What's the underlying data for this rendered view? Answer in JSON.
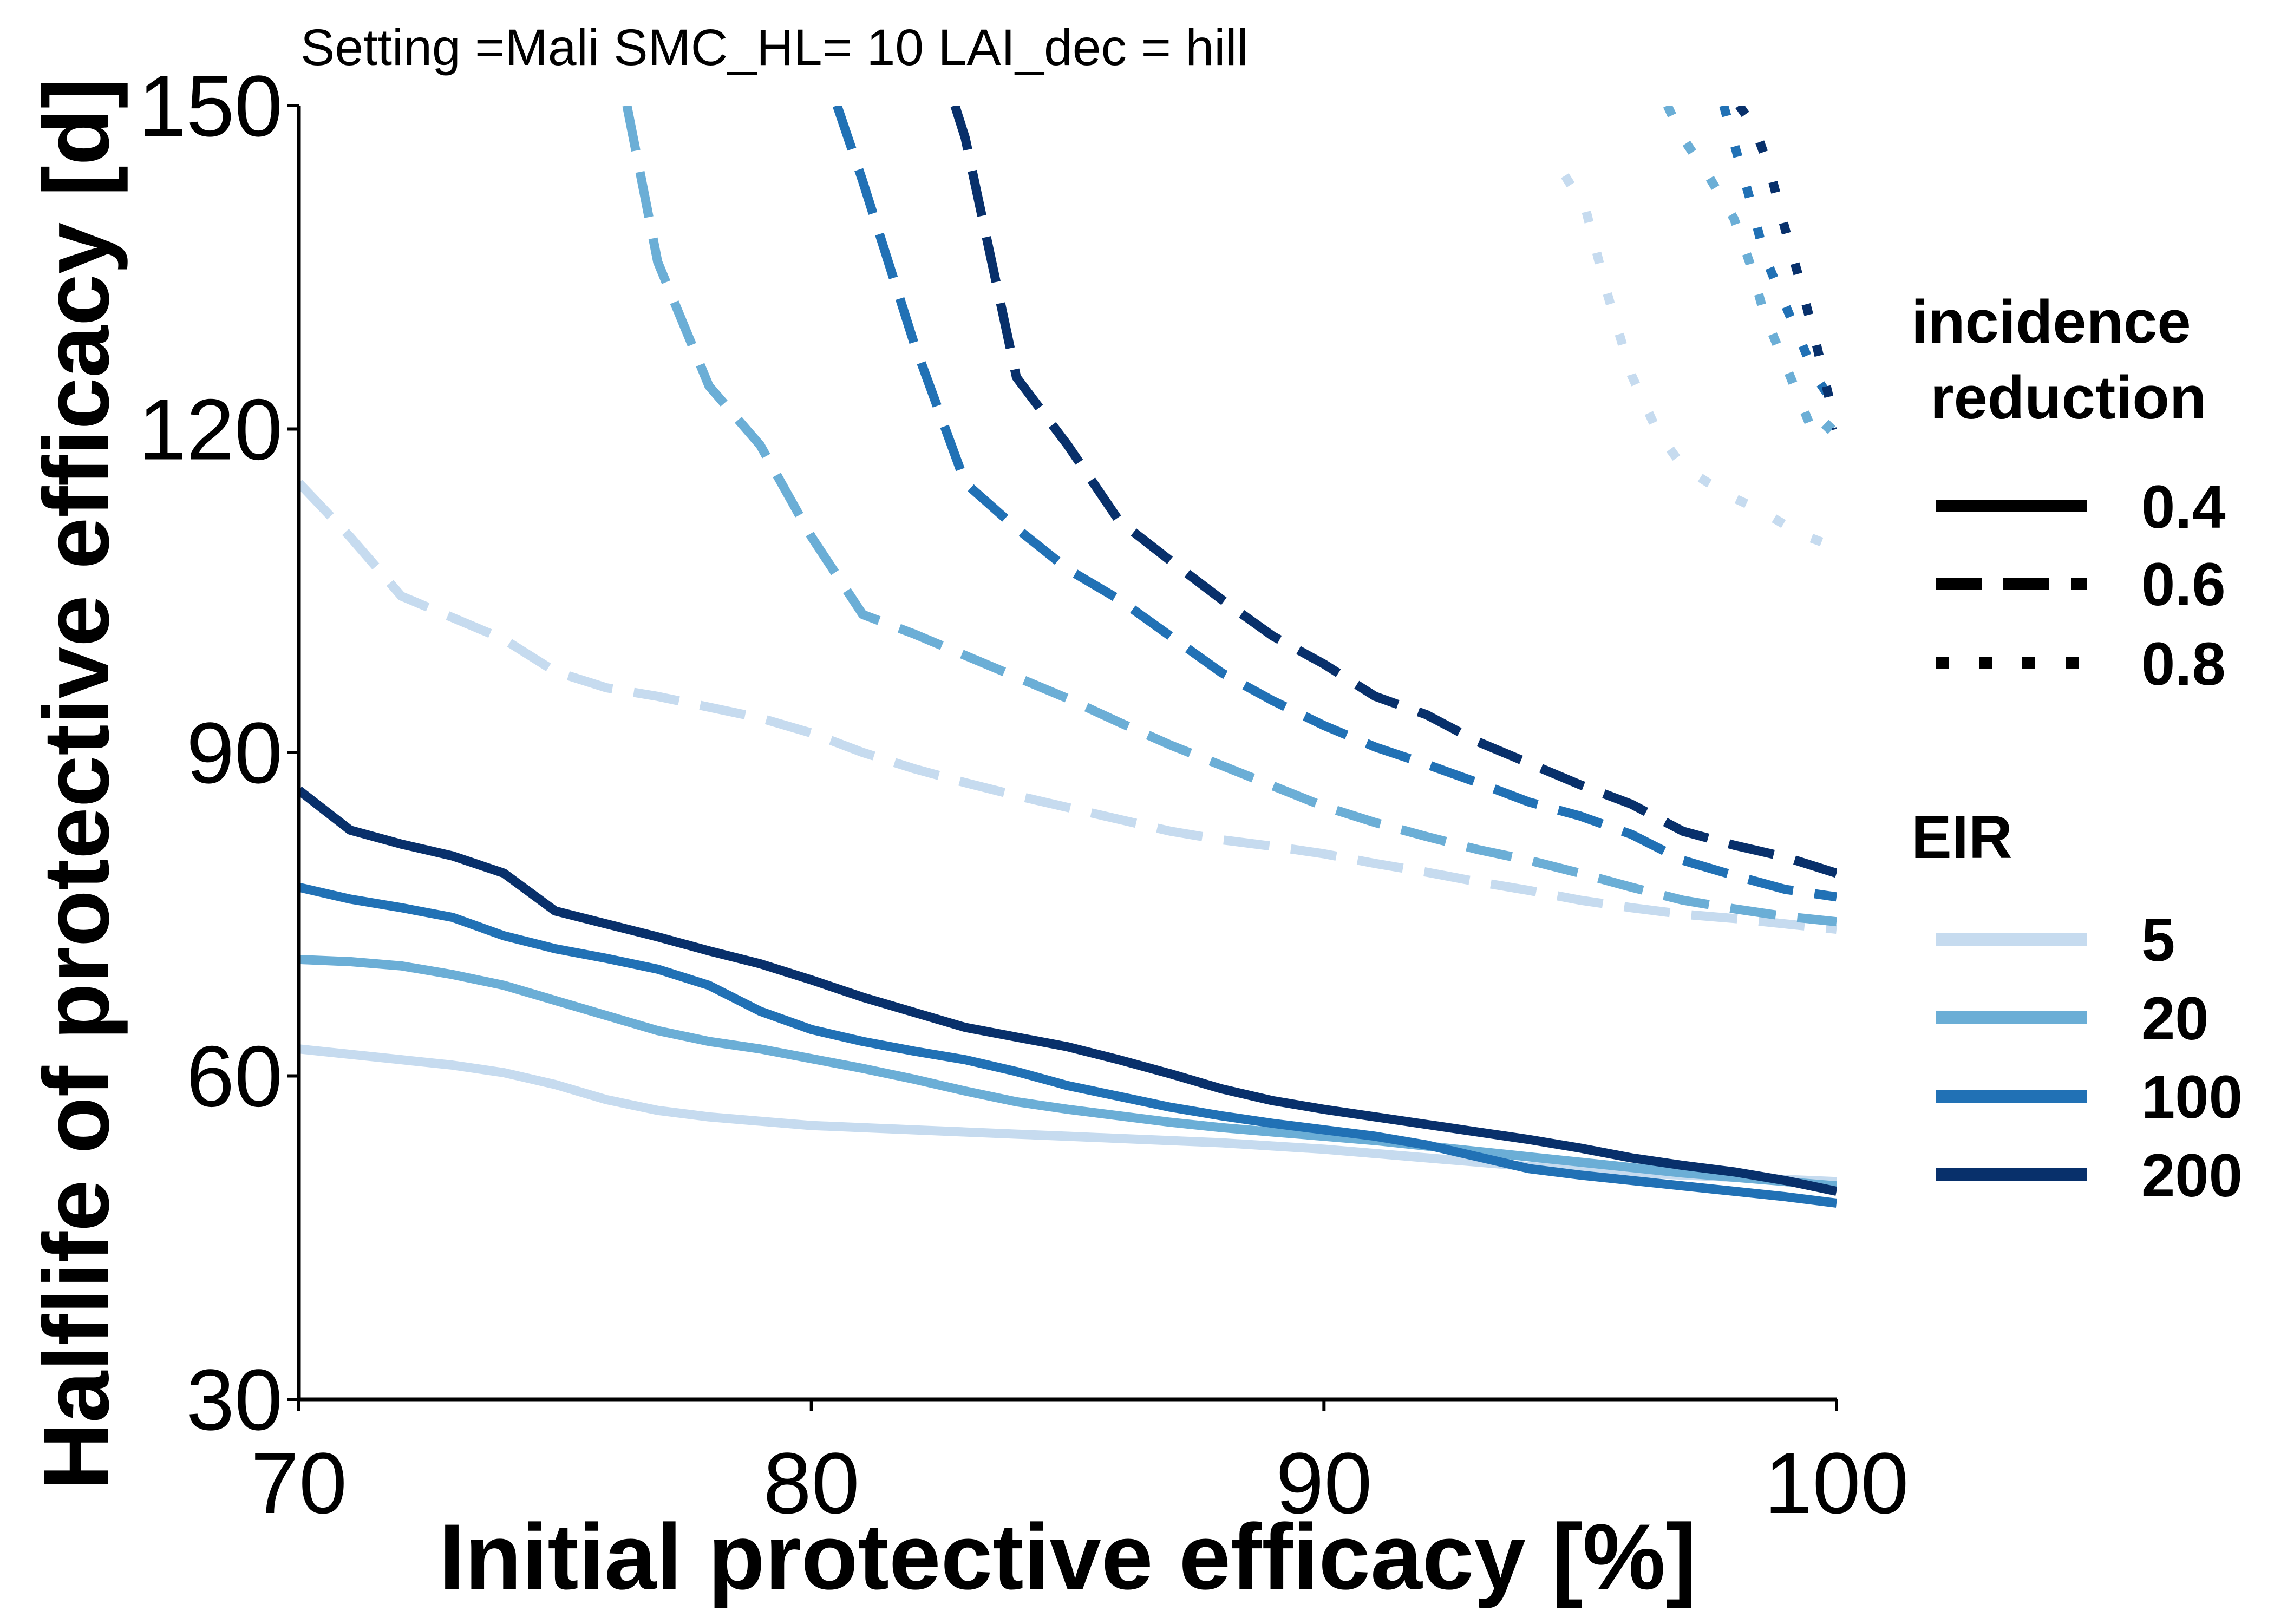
{
  "chart_data": {
    "type": "line",
    "title": "Setting =Mali SMC_HL= 10 LAI_dec = hill",
    "xlabel": "Initial protective efficacy [%]",
    "ylabel": "Halflife of protective efficacy [d]",
    "xlim": [
      70,
      100
    ],
    "ylim": [
      30,
      150
    ],
    "xticks": [
      "70",
      "80",
      "90",
      "100"
    ],
    "yticks": [
      "30",
      "60",
      "90",
      "120",
      "150"
    ],
    "grid": false,
    "legend_placement": "right",
    "legend": {
      "linetype_title": [
        "incidence",
        "reduction"
      ],
      "linetype_entries": [
        {
          "label": "0.4",
          "style": "solid"
        },
        {
          "label": "0.6",
          "style": "dashed"
        },
        {
          "label": "0.8",
          "style": "dotted"
        }
      ],
      "color_title": "EIR",
      "color_entries": [
        {
          "label": "5",
          "color": "#c6dbef"
        },
        {
          "label": "20",
          "color": "#6baed6"
        },
        {
          "label": "100",
          "color": "#2171b5"
        },
        {
          "label": "200",
          "color": "#08306b"
        }
      ]
    },
    "series": [
      {
        "eir": "5",
        "reduction": "0.4",
        "color": "#c6dbef",
        "style": "solid",
        "x": [
          70,
          71,
          72,
          73,
          74,
          75,
          76,
          77,
          78,
          79,
          80,
          81,
          82,
          83,
          84,
          85,
          86,
          87,
          88,
          89,
          90,
          91,
          92,
          93,
          94,
          95,
          96,
          97,
          98,
          99,
          100
        ],
        "y": [
          62.5,
          62,
          61.5,
          61,
          60.3,
          59.2,
          57.8,
          56.8,
          56.2,
          55.8,
          55.4,
          55.2,
          55,
          54.8,
          54.6,
          54.4,
          54.2,
          54,
          53.8,
          53.5,
          53.2,
          52.8,
          52.4,
          52,
          51.6,
          51.3,
          51,
          50.8,
          50.6,
          50.4,
          50.2
        ]
      },
      {
        "eir": "20",
        "reduction": "0.4",
        "color": "#6baed6",
        "style": "solid",
        "x": [
          70,
          71,
          72,
          73,
          74,
          75,
          76,
          77,
          78,
          79,
          80,
          81,
          82,
          83,
          84,
          85,
          86,
          87,
          88,
          89,
          90,
          91,
          92,
          93,
          94,
          95,
          96,
          97,
          98,
          99,
          100
        ],
        "y": [
          70.8,
          70.6,
          70.2,
          69.4,
          68.4,
          67,
          65.6,
          64.2,
          63.2,
          62.5,
          61.6,
          60.7,
          59.7,
          58.6,
          57.6,
          56.9,
          56.3,
          55.7,
          55.2,
          54.8,
          54.4,
          54,
          53.5,
          53,
          52.5,
          52,
          51.5,
          51,
          50.6,
          50.2,
          49.8
        ]
      },
      {
        "eir": "100",
        "reduction": "0.4",
        "color": "#2171b5",
        "style": "solid",
        "x": [
          70,
          71,
          72,
          73,
          74,
          75,
          76,
          77,
          78,
          79,
          80,
          81,
          82,
          83,
          84,
          85,
          86,
          87,
          88,
          89,
          90,
          91,
          92,
          93,
          94,
          95,
          96,
          97,
          98,
          99,
          100
        ],
        "y": [
          77.5,
          76.4,
          75.6,
          74.7,
          73,
          71.8,
          70.9,
          69.9,
          68.4,
          66,
          64.3,
          63.2,
          62.3,
          61.5,
          60.4,
          59.1,
          58.1,
          57.1,
          56.3,
          55.6,
          55,
          54.4,
          53.6,
          52.5,
          51.4,
          50.8,
          50.3,
          49.8,
          49.3,
          48.8,
          48.2
        ]
      },
      {
        "eir": "200",
        "reduction": "0.4",
        "color": "#08306b",
        "style": "solid",
        "x": [
          70,
          71,
          72,
          73,
          74,
          75,
          76,
          77,
          78,
          79,
          80,
          81,
          82,
          83,
          84,
          85,
          86,
          87,
          88,
          89,
          90,
          91,
          92,
          93,
          94,
          95,
          96,
          97,
          98,
          99,
          100
        ],
        "y": [
          86.5,
          82.8,
          81.5,
          80.4,
          78.8,
          75.3,
          74.1,
          72.9,
          71.6,
          70.4,
          68.9,
          67.3,
          65.9,
          64.5,
          63.6,
          62.7,
          61.5,
          60.2,
          58.8,
          57.7,
          56.9,
          56.2,
          55.5,
          54.8,
          54.1,
          53.3,
          52.4,
          51.7,
          51.1,
          50.3,
          49.3
        ]
      },
      {
        "eir": "5",
        "reduction": "0.6",
        "color": "#c6dbef",
        "style": "dashed",
        "x": [
          70,
          71,
          72,
          73,
          74,
          75,
          76,
          77,
          78,
          79,
          80,
          81,
          82,
          83,
          84,
          85,
          86,
          87,
          88,
          89,
          90,
          91,
          92,
          93,
          94,
          95,
          96,
          97,
          98,
          99,
          100
        ],
        "y": [
          115,
          110,
          104.5,
          102.5,
          100.5,
          97.5,
          96,
          95.2,
          94.2,
          93.2,
          91.8,
          90,
          88.5,
          87.2,
          86,
          84.9,
          83.8,
          82.7,
          81.9,
          81.3,
          80.6,
          79.7,
          78.9,
          78,
          77.2,
          76.3,
          75.6,
          75,
          74.6,
          74.1,
          73.6
        ]
      },
      {
        "eir": "20",
        "reduction": "0.6",
        "color": "#6baed6",
        "style": "dashed",
        "x": [
          76.4,
          77,
          78,
          79,
          80,
          81,
          82,
          83,
          84,
          85,
          86,
          87,
          88,
          89,
          90,
          91,
          92,
          93,
          94,
          95,
          96,
          97,
          98,
          99,
          100
        ],
        "y": [
          150,
          135.5,
          124,
          118.5,
          110,
          102.8,
          101,
          99,
          97,
          95,
          92.8,
          90.7,
          88.8,
          86.9,
          85,
          83.5,
          82.2,
          81,
          80,
          78.8,
          77.5,
          76.3,
          75.5,
          74.8,
          74.3
        ]
      },
      {
        "eir": "100",
        "reduction": "0.6",
        "color": "#2171b5",
        "style": "dashed",
        "x": [
          80.5,
          81,
          82,
          83,
          84,
          85,
          86,
          87,
          88,
          89,
          90,
          91,
          92,
          93,
          94,
          95,
          96,
          97,
          98,
          99,
          100
        ],
        "y": [
          150,
          143,
          128,
          115,
          110.8,
          107,
          104.2,
          100.8,
          97.4,
          94.8,
          92.5,
          90.5,
          88.9,
          87.2,
          85.4,
          84.1,
          82.4,
          80,
          78.6,
          77.3,
          76.6
        ]
      },
      {
        "eir": "200",
        "reduction": "0.6",
        "color": "#08306b",
        "style": "dashed",
        "x": [
          82.8,
          83,
          84,
          85,
          86,
          87,
          88,
          89,
          90,
          91,
          92,
          93,
          94,
          95,
          96,
          97,
          98,
          99,
          100
        ],
        "y": [
          150,
          147,
          124.8,
          118.5,
          111.5,
          107.8,
          104.2,
          100.8,
          98.2,
          95.2,
          93.5,
          91,
          89,
          87,
          85.2,
          82.7,
          81.4,
          80.3,
          78.8
        ]
      },
      {
        "eir": "5",
        "reduction": "0.8",
        "color": "#c6dbef",
        "style": "dotted",
        "x": [
          94.7,
          95.1,
          95.5,
          96,
          96.5,
          97,
          97.5,
          98,
          98.5,
          99,
          99.5,
          100
        ],
        "y": [
          143.5,
          140.5,
          133,
          125,
          119.8,
          116.5,
          115,
          113.6,
          112.5,
          111.1,
          109.9,
          109
        ]
      },
      {
        "eir": "20",
        "reduction": "0.8",
        "color": "#6baed6",
        "style": "dotted",
        "x": [
          96.7,
          97,
          97.5,
          98,
          98.3,
          98.6,
          99,
          99.3,
          99.6,
          100
        ],
        "y": [
          150,
          147,
          143.5,
          139.5,
          135.5,
          130.5,
          126,
          122.5,
          119,
          121
        ]
      },
      {
        "eir": "100",
        "reduction": "0.8",
        "color": "#2171b5",
        "style": "dotted",
        "x": [
          97.8,
          98,
          98.3,
          98.6,
          99,
          99.3,
          99.6,
          100
        ],
        "y": [
          150,
          146.5,
          141.5,
          136,
          131.5,
          128.2,
          124.8,
          122
        ]
      },
      {
        "eir": "200",
        "reduction": "0.8",
        "color": "#08306b",
        "style": "dotted",
        "x": [
          98.1,
          98.4,
          98.7,
          99,
          99.3,
          99.6,
          100
        ],
        "y": [
          150,
          148,
          144,
          138.5,
          133.5,
          128,
          120
        ]
      }
    ]
  }
}
